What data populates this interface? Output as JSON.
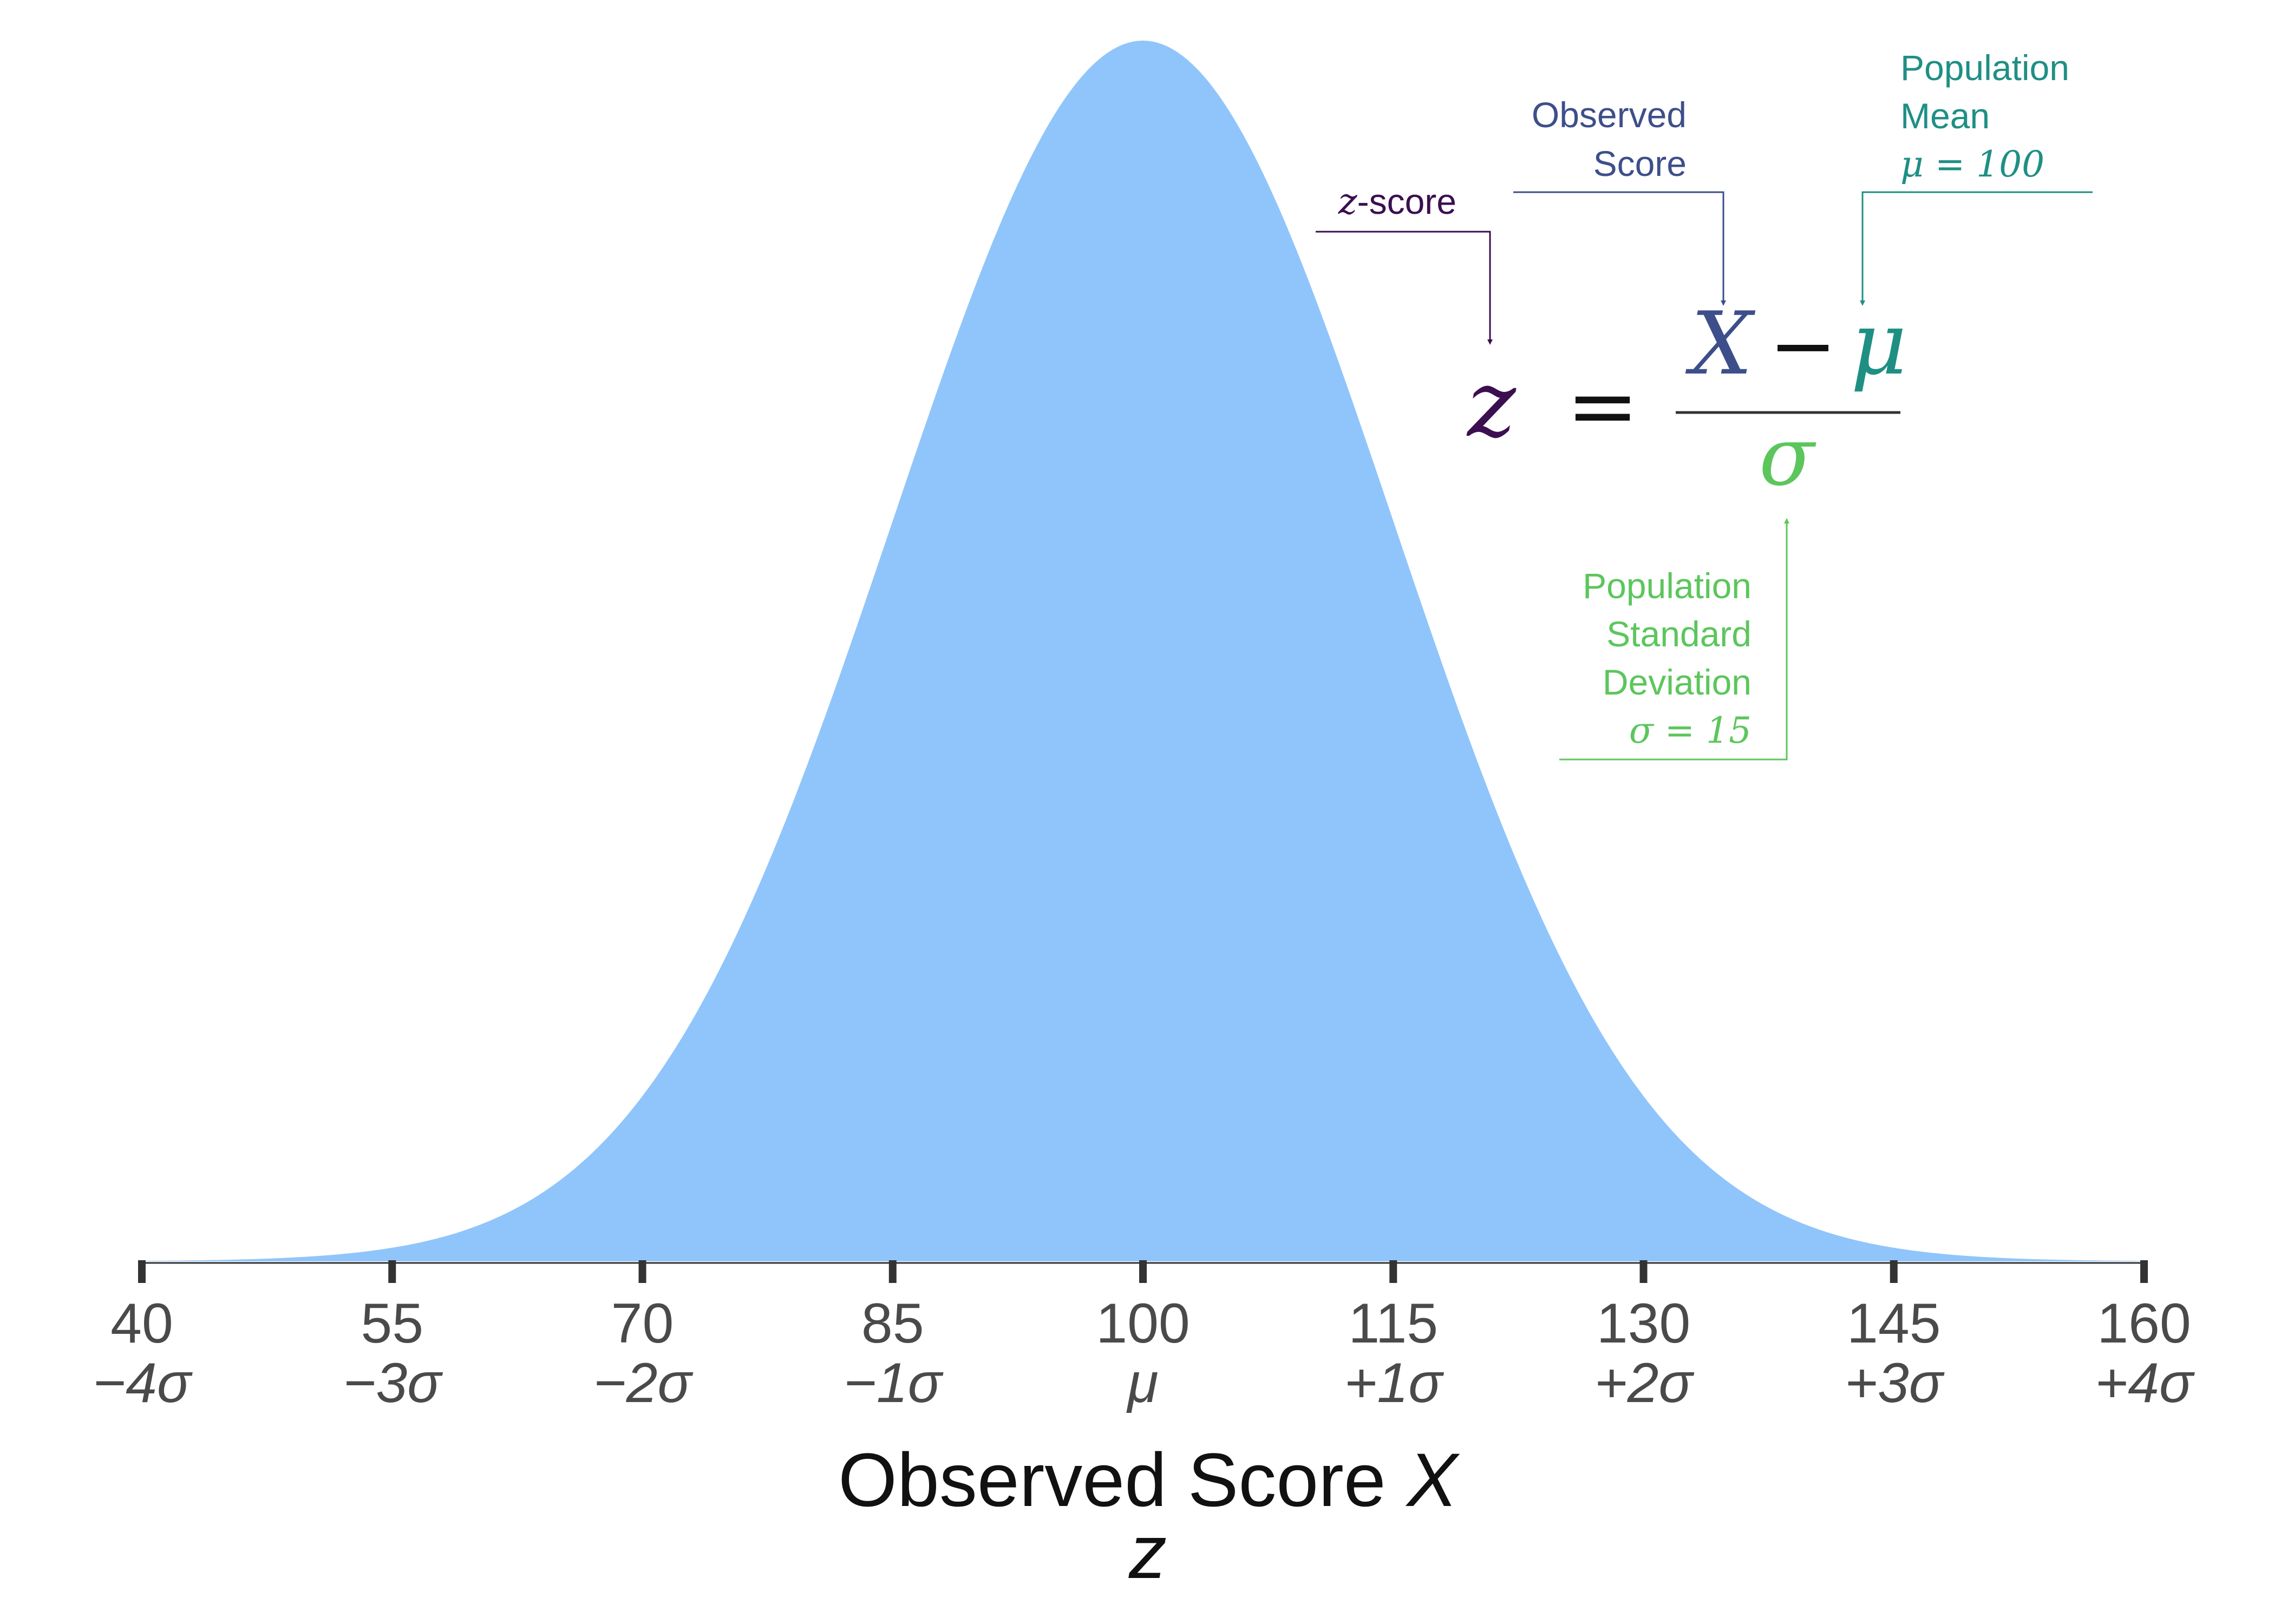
{
  "chart_data": {
    "type": "area",
    "distribution": "normal",
    "mean": 100,
    "sd": 15,
    "x_range": [
      40,
      160
    ],
    "fill_color": "#90c5fb",
    "axis_color": "#333333",
    "ticks": [
      {
        "value": 40,
        "score_label": "40",
        "z_label": "−4σ"
      },
      {
        "value": 55,
        "score_label": "55",
        "z_label": "−3σ"
      },
      {
        "value": 70,
        "score_label": "70",
        "z_label": "−2σ"
      },
      {
        "value": 85,
        "score_label": "85",
        "z_label": "−1σ"
      },
      {
        "value": 100,
        "score_label": "100",
        "z_label": "μ"
      },
      {
        "value": 115,
        "score_label": "115",
        "z_label": "+1σ"
      },
      {
        "value": 130,
        "score_label": "130",
        "z_label": "+2σ"
      },
      {
        "value": 145,
        "score_label": "145",
        "z_label": "+3σ"
      },
      {
        "value": 160,
        "score_label": "160",
        "z_label": "+4σ"
      }
    ],
    "xlabel_line1_text": "Observed Score ",
    "xlabel_line1_var": "X",
    "xlabel_line2": "z",
    "formula": {
      "lhs": "z",
      "equals": "=",
      "numerator_x": "X",
      "numerator_minus": "−",
      "numerator_mu": "μ",
      "denominator": "σ",
      "colors": {
        "z": "#3b0f50",
        "X": "#3d4f8a",
        "mu": "#1f8f84",
        "sigma": "#5cc65c",
        "equals": "#111111"
      }
    },
    "annotations": {
      "z_score": {
        "var": "z",
        "text": "-score"
      },
      "observed": {
        "line1": "Observed",
        "line2": "Score"
      },
      "mean": {
        "line1": "Population",
        "line2": "Mean",
        "line3": "μ = 100"
      },
      "sd": {
        "line1": "Population",
        "line2": "Standard",
        "line3": "Deviation",
        "line4": "σ = 15"
      }
    }
  }
}
